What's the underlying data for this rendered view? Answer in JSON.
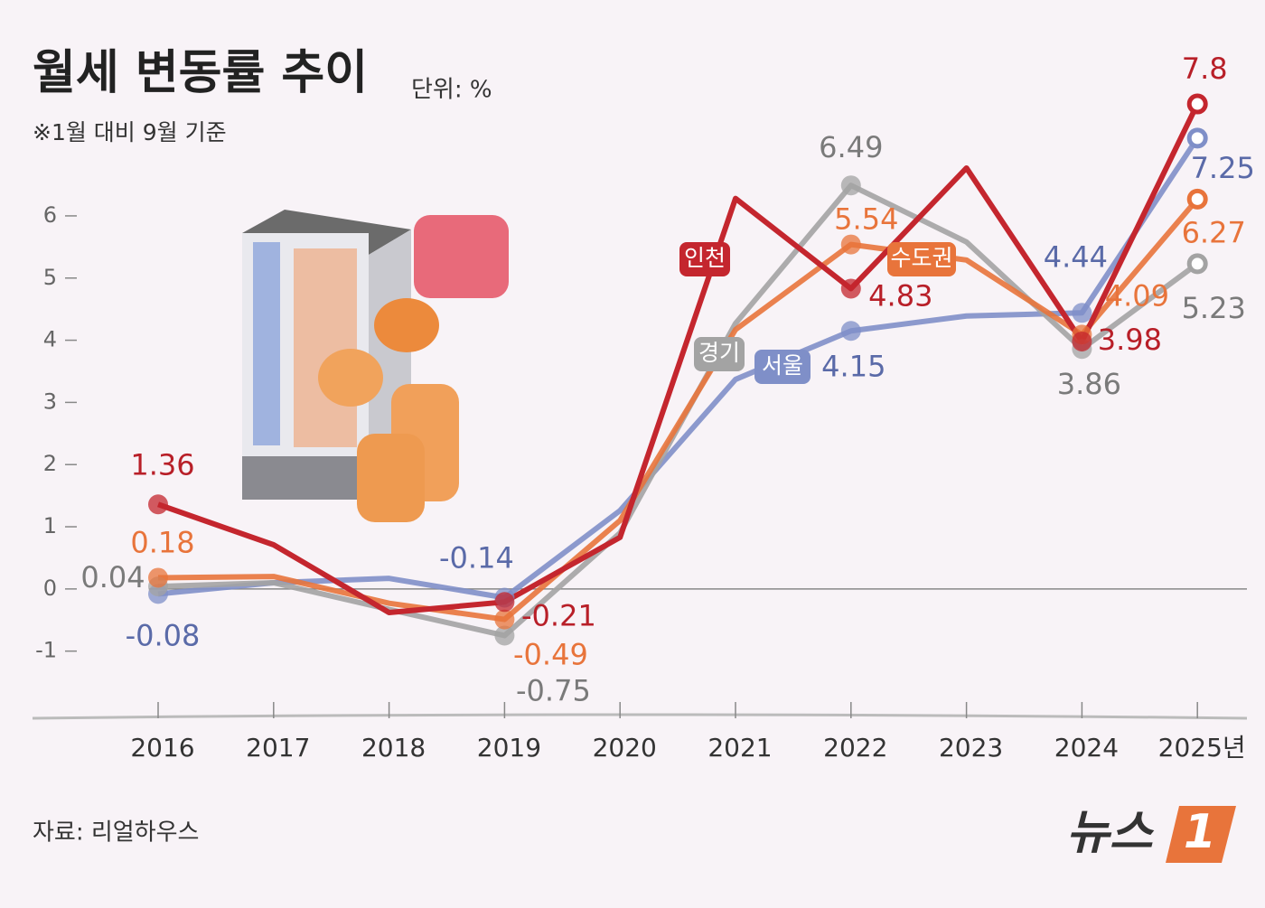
{
  "chart_data": {
    "type": "line",
    "title": "월세 변동률 추이",
    "unit": "단위: %",
    "subtitle": "※1월 대비 9월 기준",
    "source": "자료: 리얼하우스",
    "logo": "뉴스",
    "logo_mark": "1",
    "categories": [
      "2016",
      "2017",
      "2018",
      "2019",
      "2020",
      "2021",
      "2022",
      "2023",
      "2024",
      "2025년"
    ],
    "ylim": [
      -2.08,
      8.6
    ],
    "yticks": [
      -1,
      0,
      1,
      2,
      3,
      4,
      5,
      6
    ],
    "series": [
      {
        "name": "서울",
        "color": "#7f8fc8",
        "values": [
          -0.08,
          0.1,
          0.17,
          -0.14,
          1.26,
          3.37,
          4.15,
          4.39,
          4.44,
          7.25
        ],
        "value_labels": [
          "-0.08",
          null,
          null,
          "-0.14",
          null,
          null,
          "4.15",
          null,
          "4.44",
          "7.25"
        ]
      },
      {
        "name": "경기",
        "color": "#a3a3a3",
        "values": [
          0.04,
          0.1,
          -0.33,
          -0.75,
          0.9,
          4.27,
          6.49,
          5.58,
          3.86,
          5.23
        ],
        "value_labels": [
          "0.04",
          null,
          null,
          "-0.75",
          null,
          null,
          "6.49",
          null,
          "3.86",
          "5.23"
        ]
      },
      {
        "name": "수도권",
        "color": "#e8743b",
        "values": [
          0.18,
          0.2,
          -0.23,
          -0.49,
          1.1,
          4.17,
          5.54,
          5.29,
          4.09,
          6.27
        ],
        "value_labels": [
          "0.18",
          null,
          null,
          "-0.49",
          null,
          null,
          "5.54",
          null,
          "4.09",
          "6.27"
        ]
      },
      {
        "name": "인천",
        "color": "#c4262e",
        "values": [
          1.36,
          0.71,
          -0.38,
          -0.21,
          0.83,
          6.28,
          4.83,
          6.77,
          3.98,
          7.8
        ],
        "value_labels": [
          "1.36",
          null,
          null,
          "-0.21",
          null,
          null,
          "4.83",
          null,
          "3.98",
          "7.8"
        ]
      }
    ]
  }
}
